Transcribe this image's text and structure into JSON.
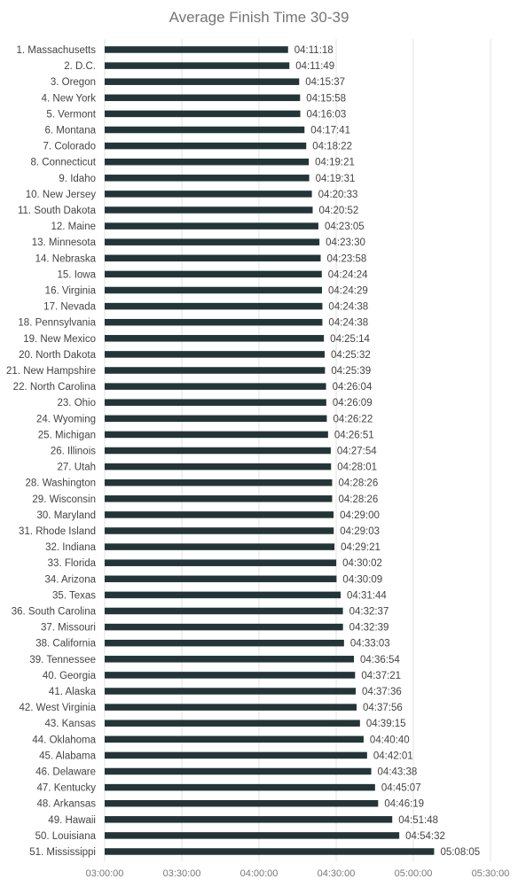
{
  "chart_data": {
    "type": "bar",
    "orientation": "horizontal",
    "title": "Average Finish Time 30-39",
    "xlabel": "",
    "ylabel": "",
    "x_axis_ticks": [
      "03:00:00",
      "03:30:00",
      "04:00:00",
      "04:30:00",
      "05:00:00",
      "05:30:00"
    ],
    "xlim": [
      "03:00:00",
      "05:30:00"
    ],
    "grid": true,
    "bar_color": "#233537",
    "categories": [
      "1. Massachusetts",
      "2. D.C.",
      "3. Oregon",
      "4. New York",
      "5. Vermont",
      "6. Montana",
      "7. Colorado",
      "8. Connecticut",
      "9. Idaho",
      "10. New Jersey",
      "11. South Dakota",
      "12. Maine",
      "13. Minnesota",
      "14. Nebraska",
      "15. Iowa",
      "16. Virginia",
      "17. Nevada",
      "18. Pennsylvania",
      "19. New Mexico",
      "20. North Dakota",
      "21. New Hampshire",
      "22. North Carolina",
      "23. Ohio",
      "24. Wyoming",
      "25. Michigan",
      "26. Illinois",
      "27. Utah",
      "28. Washington",
      "29. Wisconsin",
      "30. Maryland",
      "31. Rhode Island",
      "32. Indiana",
      "33. Florida",
      "34. Arizona",
      "35. Texas",
      "36. South Carolina",
      "37. Missouri",
      "38. California",
      "39. Tennessee",
      "40. Georgia",
      "41. Alaska",
      "42. West Virginia",
      "43. Kansas",
      "44. Oklahoma",
      "45. Alabama",
      "46. Delaware",
      "47. Kentucky",
      "48. Arkansas",
      "49. Hawaii",
      "50. Louisiana",
      "51. Mississippi"
    ],
    "values": [
      "04:11:18",
      "04:11:49",
      "04:15:37",
      "04:15:58",
      "04:16:03",
      "04:17:41",
      "04:18:22",
      "04:19:21",
      "04:19:31",
      "04:20:33",
      "04:20:52",
      "04:23:05",
      "04:23:30",
      "04:23:58",
      "04:24:24",
      "04:24:29",
      "04:24:38",
      "04:24:38",
      "04:25:14",
      "04:25:32",
      "04:25:39",
      "04:26:04",
      "04:26:09",
      "04:26:22",
      "04:26:51",
      "04:27:54",
      "04:28:01",
      "04:28:26",
      "04:28:26",
      "04:29:00",
      "04:29:03",
      "04:29:21",
      "04:30:02",
      "04:30:09",
      "04:31:44",
      "04:32:37",
      "04:32:39",
      "04:33:03",
      "04:36:54",
      "04:37:21",
      "04:37:36",
      "04:37:56",
      "04:39:15",
      "04:40:40",
      "04:42:01",
      "04:43:38",
      "04:45:07",
      "04:46:19",
      "04:51:48",
      "04:54:32",
      "05:08:05"
    ]
  }
}
